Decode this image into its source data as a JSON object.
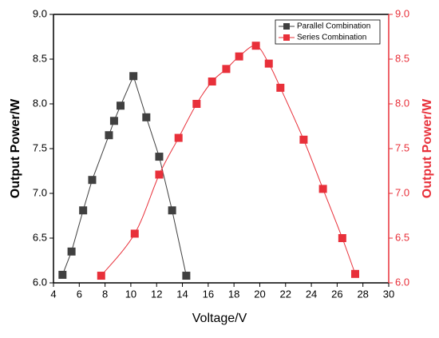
{
  "chart_data": {
    "type": "line",
    "xlabel": "Voltage/V",
    "ylabel": "Output Power/W",
    "y2label": "Output Power/W",
    "xlim": [
      4,
      30
    ],
    "xticks": [
      4,
      6,
      8,
      10,
      12,
      14,
      16,
      18,
      20,
      22,
      24,
      26,
      28,
      30
    ],
    "ylim": [
      6,
      9
    ],
    "yticks": [
      {
        "value": 6,
        "label": "6.0"
      },
      {
        "value": 6.5,
        "label": "6.5"
      },
      {
        "value": 7,
        "label": "7.0"
      },
      {
        "value": 7.5,
        "label": "7.5"
      },
      {
        "value": 8,
        "label": "8.0"
      },
      {
        "value": 8.5,
        "label": "8.5"
      },
      {
        "value": 9,
        "label": "9.0"
      }
    ],
    "y2lim": [
      6,
      9
    ],
    "y2ticks": [
      {
        "value": 6,
        "label": "6.0"
      },
      {
        "value": 6.5,
        "label": "6.5"
      },
      {
        "value": 7,
        "label": "7.0"
      },
      {
        "value": 7.5,
        "label": "7.5"
      },
      {
        "value": 8,
        "label": "8.0"
      },
      {
        "value": 8.5,
        "label": "8.5"
      },
      {
        "value": 9,
        "label": "9.0"
      }
    ],
    "y2color": "#e8303a",
    "legend": "upper right",
    "series": [
      {
        "name": "Parallel Combination",
        "color": "#404040",
        "smooth": false,
        "x": [
          4.7,
          5.4,
          6.3,
          7.0,
          8.3,
          8.7,
          9.2,
          10.2,
          11.2,
          12.2,
          13.2,
          14.3
        ],
        "values": [
          6.09,
          6.35,
          6.81,
          7.15,
          7.65,
          7.81,
          7.98,
          8.31,
          7.85,
          7.41,
          6.81,
          6.08
        ]
      },
      {
        "name": "Series Combination",
        "color": "#e8303a",
        "smooth": true,
        "axis": "y2",
        "x": [
          7.7,
          10.3,
          12.2,
          13.7,
          15.1,
          16.3,
          17.4,
          18.4,
          19.7,
          20.7,
          21.6,
          23.4,
          24.9,
          26.4,
          27.4
        ],
        "values": [
          6.08,
          6.55,
          7.21,
          7.62,
          8.0,
          8.25,
          8.39,
          8.53,
          8.65,
          8.45,
          8.18,
          7.6,
          7.05,
          6.5,
          6.1
        ]
      }
    ]
  }
}
